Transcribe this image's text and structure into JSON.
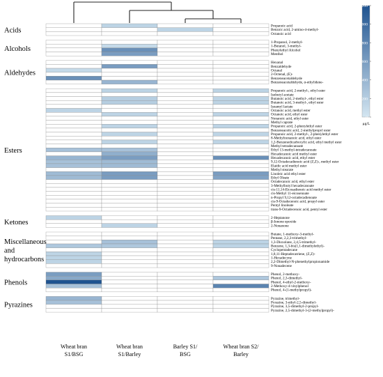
{
  "chart_data": {
    "type": "heatmap",
    "unit": "μg/L",
    "columns": [
      "Wheat bran S1/BSG",
      "Wheat bran S1/Barley",
      "Barley S1/ BSG",
      "Wheat bran S2/ Barley"
    ],
    "column_labels": [
      [
        "Wheat bran",
        "S1/BSG"
      ],
      [
        "Wheat bran",
        "S1/Barley"
      ],
      [
        "Barley S1/",
        "BSG"
      ],
      [
        "Wheat bran S2/",
        "Barley"
      ]
    ],
    "colorbar": {
      "min": 0,
      "max": 1200,
      "ticks": [
        0,
        200,
        400,
        600,
        800,
        1000,
        1200
      ],
      "colors": [
        "#d4e6f1",
        "#1f5390"
      ]
    },
    "dendrogram": "columns",
    "groups": [
      {
        "name": "Acids",
        "label_lines": [
          "Acids"
        ],
        "rows": [
          {
            "compound": "Propanoic acid",
            "values": [
              0,
              150,
              0,
              0
            ]
          },
          {
            "compound": "Benzoic acid, 2-amino-4-methyl-",
            "values": [
              0,
              0,
              150,
              0
            ]
          },
          {
            "compound": "Octanoic acid",
            "values": [
              0,
              0,
              0,
              0
            ]
          }
        ]
      },
      {
        "name": "Alcohols",
        "label_lines": [
          "Alcohols"
        ],
        "rows": [
          {
            "compound": "1-Propanol, 2-methyl-",
            "values": [
              0,
              0,
              0,
              0
            ]
          },
          {
            "compound": "1-Butanol, 3-methyl-",
            "values": [
              0,
              100,
              0,
              0
            ]
          },
          {
            "compound": "Phenylethyl Alcohol",
            "values": [
              0,
              700,
              0,
              0
            ]
          },
          {
            "compound": "Menthol",
            "values": [
              0,
              600,
              0,
              0
            ]
          }
        ]
      },
      {
        "name": "Aldehydes",
        "label_lines": [
          "Aldehydes"
        ],
        "rows": [
          {
            "compound": "Hexanal",
            "values": [
              0,
              0,
              0,
              0
            ]
          },
          {
            "compound": "Benzaldehyde",
            "values": [
              0,
              600,
              0,
              0
            ]
          },
          {
            "compound": "Octanal",
            "values": [
              100,
              0,
              0,
              0
            ]
          },
          {
            "compound": "2-Octenal, (E)-",
            "values": [
              0,
              0,
              0,
              0
            ]
          },
          {
            "compound": "Benzeneacetaldehyde",
            "values": [
              700,
              0,
              0,
              0
            ]
          },
          {
            "compound": "Benzeneacetaldehyde, α-ethylidene-",
            "values": [
              0,
              400,
              0,
              0
            ]
          }
        ]
      },
      {
        "name": "Esters",
        "label_lines": [
          "Esters"
        ],
        "rows": [
          {
            "compound": "Propanoic acid, 2-methyl-, ethyl ester",
            "values": [
              0,
              150,
              0,
              150
            ]
          },
          {
            "compound": "Isobutyl acetate",
            "values": [
              0,
              0,
              0,
              0
            ]
          },
          {
            "compound": "Butanoic acid, 2-methyl-, ethyl ester",
            "values": [
              0,
              200,
              0,
              150
            ]
          },
          {
            "compound": "Butanoic acid, 3-methyl-, ethyl ester",
            "values": [
              0,
              200,
              0,
              150
            ]
          },
          {
            "compound": "Isoamyl lactate",
            "values": [
              0,
              0,
              0,
              0
            ]
          },
          {
            "compound": "Octanoic acid, methyl ester",
            "values": [
              150,
              0,
              0,
              0
            ]
          },
          {
            "compound": "Octanoic acid, ethyl ester",
            "values": [
              0,
              150,
              0,
              150
            ]
          },
          {
            "compound": "Nonanoic acid, ethyl ester",
            "values": [
              0,
              0,
              0,
              0
            ]
          },
          {
            "compound": "Methyl caprate",
            "values": [
              0,
              0,
              0,
              0
            ]
          },
          {
            "compound": "Propanoic acid, 2-phenylethyl ester",
            "values": [
              0,
              150,
              0,
              150
            ]
          },
          {
            "compound": "Benzeneacetic acid, 2-methylpropyl ester",
            "values": [
              0,
              0,
              0,
              0
            ]
          },
          {
            "compound": "Propanoic acid, 2-methyl-, 2-phenylethyl ester",
            "values": [
              0,
              150,
              0,
              150
            ]
          },
          {
            "compound": "8-Methylnonanoic acid, ethyl ester",
            "values": [
              0,
              0,
              0,
              0
            ]
          },
          {
            "compound": "1,2-Benzenedicarboxylic acid, ethyl methyl ester",
            "values": [
              0,
              150,
              0,
              150
            ]
          },
          {
            "compound": "Methyl tetradecanoate",
            "values": [
              0,
              0,
              0,
              0
            ]
          },
          {
            "compound": "Ethyl 13-methyl-tetradecanoate",
            "values": [
              300,
              300,
              0,
              0
            ]
          },
          {
            "compound": "Hexadecanoic acid methyl ester",
            "values": [
              0,
              450,
              0,
              0
            ]
          },
          {
            "compound": "Hexadecanoic acid, ethyl ester",
            "values": [
              400,
              600,
              0,
              700
            ]
          },
          {
            "compound": "9,12-Octadecadienoic acid (Z,Z)-, methyl ester",
            "values": [
              300,
              350,
              0,
              0
            ]
          },
          {
            "compound": "Elaidic acid methyl ester",
            "values": [
              300,
              350,
              0,
              0
            ]
          },
          {
            "compound": "Methyl stearate",
            "values": [
              0,
              0,
              0,
              0
            ]
          },
          {
            "compound": "Linoleic acid ethyl ester",
            "values": [
              350,
              600,
              0,
              600
            ]
          },
          {
            "compound": "Ethyl Oleate",
            "values": [
              350,
              600,
              0,
              550
            ]
          },
          {
            "compound": "Octadecanoic acid, ethyl ester",
            "values": [
              0,
              0,
              0,
              0
            ]
          },
          {
            "compound": "3-Methylbutyl hexadecanoate",
            "values": [
              0,
              0,
              0,
              0
            ]
          },
          {
            "compound": "cis-11,14-Eicosadienoic acid methyl ester",
            "values": [
              0,
              0,
              0,
              0
            ]
          },
          {
            "compound": "cis-Methyl 11-eicosenoate",
            "values": [
              0,
              0,
              0,
              0
            ]
          },
          {
            "compound": "n-Propyl 9,12-octadecadienoate",
            "values": [
              0,
              0,
              0,
              0
            ]
          },
          {
            "compound": "cis-9-Octadecenoic acid, propyl ester",
            "values": [
              0,
              0,
              0,
              0
            ]
          },
          {
            "compound": "Pentyl linoleate",
            "values": [
              0,
              0,
              0,
              0
            ]
          },
          {
            "compound": "trans-9-Octadecenoic acid, pentyl ester",
            "values": [
              0,
              0,
              0,
              0
            ]
          }
        ]
      },
      {
        "name": "Ketones",
        "label_lines": [
          "Ketones"
        ],
        "rows": [
          {
            "compound": "2-Heptanone",
            "values": [
              150,
              0,
              0,
              0
            ]
          },
          {
            "compound": "β-Ionone epoxide",
            "values": [
              0,
              0,
              0,
              0
            ]
          },
          {
            "compound": "2-Nonanone",
            "values": [
              0,
              150,
              0,
              0
            ]
          }
        ]
      },
      {
        "name": "Miscellaneous and hydrocarbons",
        "label_lines": [
          "Miscellaneous",
          "and",
          "hydrocarbons"
        ],
        "rows": [
          {
            "compound": "Butane, 1-methoxy-3-methyl-",
            "values": [
              0,
              0,
              0,
              0
            ]
          },
          {
            "compound": "Pentane, 2,2,3-trimethyl-",
            "values": [
              0,
              0,
              0,
              0
            ]
          },
          {
            "compound": "1,3-Dioxolane, 2,4,5-trimethyl-",
            "values": [
              0,
              300,
              0,
              150
            ]
          },
          {
            "compound": "Benzene, 1,3-bis(1,1-dimethylethyl)-",
            "values": [
              250,
              250,
              0,
              150
            ]
          },
          {
            "compound": "Cyclopentadecane",
            "values": [
              0,
              0,
              0,
              0
            ]
          },
          {
            "compound": "1,8,11-Heptadecatriene, (Z,Z)-",
            "values": [
              150,
              0,
              0,
              0
            ]
          },
          {
            "compound": "1-Hexadecyne",
            "values": [
              150,
              0,
              0,
              0
            ]
          },
          {
            "compound": "2,2-Dimethyl-N-phenethylpropionamide",
            "values": [
              150,
              0,
              0,
              0
            ]
          },
          {
            "compound": "9-Nonadecene",
            "values": [
              0,
              0,
              0,
              0
            ]
          }
        ]
      },
      {
        "name": "Phenols",
        "label_lines": [
          "Phenols"
        ],
        "rows": [
          {
            "compound": "Phenol, 2-methoxy-",
            "values": [
              600,
              0,
              0,
              0
            ]
          },
          {
            "compound": "Phenol, 2,3-dimethyl-",
            "values": [
              500,
              0,
              0,
              250
            ]
          },
          {
            "compound": "Phenol, 4-ethyl-2-methoxy-",
            "values": [
              1200,
              0,
              0,
              0
            ]
          },
          {
            "compound": "2-Methoxy-4-vinylphenol",
            "values": [
              300,
              0,
              0,
              800
            ]
          },
          {
            "compound": "Phenol, 4-(1-methylpropyl)-",
            "values": [
              0,
              0,
              0,
              0
            ]
          }
        ]
      },
      {
        "name": "Pyrazines",
        "label_lines": [
          "Pyrazines"
        ],
        "rows": [
          {
            "compound": "Pyrazine, trimethyl-",
            "values": [
              400,
              0,
              0,
              0
            ]
          },
          {
            "compound": "Pyrazine, 3-ethyl-2,5-dimethyl-",
            "values": [
              300,
              0,
              0,
              0
            ]
          },
          {
            "compound": "Pyrazine, 3,5-dimethyl-2-propyl-",
            "values": [
              0,
              0,
              0,
              0
            ]
          },
          {
            "compound": "Pyrazine, 2,5-dimethyl-3-(2-methylpropyl)-",
            "values": [
              0,
              0,
              0,
              0
            ]
          }
        ]
      }
    ]
  }
}
